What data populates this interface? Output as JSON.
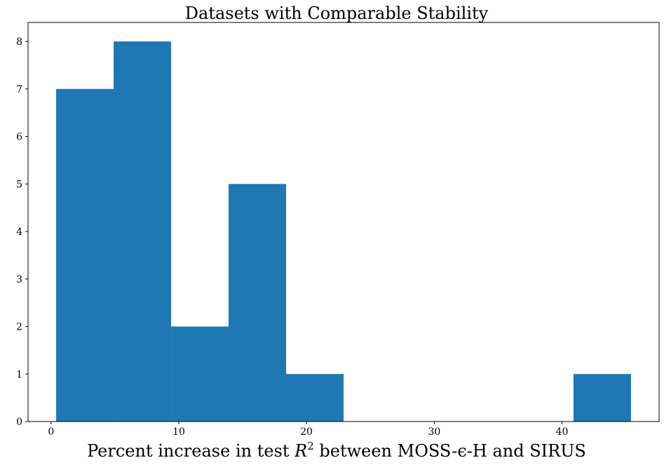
{
  "chart_data": {
    "type": "bar",
    "title": "Datasets with Comparable Stability",
    "xlabel_parts": {
      "before": "Percent increase in test ",
      "var": "R",
      "sup": "2",
      "after": " between MOSS-ϵ-H and SIRUS"
    },
    "ylabel": "",
    "bin_edges": [
      0.4,
      4.9,
      9.4,
      13.9,
      18.4,
      22.9,
      27.4,
      31.9,
      36.4,
      40.9,
      45.4
    ],
    "counts": [
      7,
      8,
      2,
      5,
      1,
      0,
      0,
      0,
      0,
      1
    ],
    "xlim": [
      -1.8,
      47.6
    ],
    "ylim": [
      0,
      8.4
    ],
    "xticks": [
      0,
      10,
      20,
      30,
      40
    ],
    "yticks": [
      0,
      1,
      2,
      3,
      4,
      5,
      6,
      7,
      8
    ],
    "bar_color": "#1f77b4",
    "grid": false
  }
}
